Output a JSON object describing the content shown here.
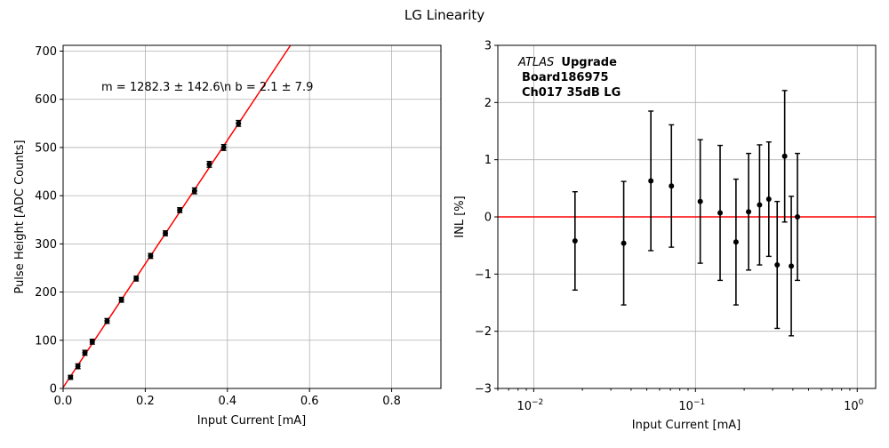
{
  "figure": {
    "title": "LG Linearity"
  },
  "chart_data": [
    {
      "type": "scatter",
      "title": "",
      "xlabel": "Input Current [mA]",
      "ylabel": "Pulse Height [ADC Counts]",
      "xlim": [
        0,
        0.92
      ],
      "ylim": [
        0,
        712
      ],
      "xticks": [
        0.0,
        0.2,
        0.4,
        0.6,
        0.8
      ],
      "xtick_labels": [
        "0.0",
        "0.2",
        "0.4",
        "0.6",
        "0.8"
      ],
      "yticks": [
        0,
        100,
        200,
        300,
        400,
        500,
        600,
        700
      ],
      "ytick_labels": [
        "0",
        "100",
        "200",
        "300",
        "400",
        "500",
        "600",
        "700"
      ],
      "grid": true,
      "annotation": "m = 1282.3 ± 142.6\\n b = 2.1 ± 7.9",
      "fit": {
        "slope": 1282.3,
        "intercept": 2.1,
        "color": "#ff0000"
      },
      "series": [
        {
          "name": "data",
          "x": [
            0.018,
            0.036,
            0.053,
            0.071,
            0.107,
            0.142,
            0.178,
            0.213,
            0.249,
            0.284,
            0.32,
            0.356,
            0.391,
            0.427
          ],
          "y": [
            23,
            46,
            74,
            97,
            140,
            184,
            228,
            275,
            322,
            370,
            410,
            465,
            500,
            550
          ],
          "yerr": [
            4,
            5,
            5,
            5,
            5,
            5,
            5,
            5,
            5,
            5,
            6,
            6,
            6,
            6
          ]
        }
      ]
    },
    {
      "type": "scatter",
      "title": "",
      "xlabel": "Input Current [mA]",
      "ylabel": "INL [%]",
      "xscale": "log",
      "xlim": [
        0.006,
        1.3
      ],
      "ylim": [
        -3,
        3
      ],
      "xticks": [
        0.01,
        0.1,
        1
      ],
      "xtick_labels": [
        "10",
        "10",
        "10"
      ],
      "xtick_exponents": [
        "−2",
        "−1",
        "0"
      ],
      "yticks": [
        -3,
        -2,
        -1,
        0,
        1,
        2,
        3
      ],
      "ytick_labels": [
        "−3",
        "−2",
        "−1",
        "0",
        "1",
        "2",
        "3"
      ],
      "grid": true,
      "reference_line": {
        "y": 0,
        "color": "#ff0000"
      },
      "legend_text": {
        "atlas": "ATLAS",
        "upgrade": "Upgrade",
        "board": "Board186975",
        "channel": "Ch017 35dB LG"
      },
      "series": [
        {
          "name": "INL",
          "x": [
            0.018,
            0.036,
            0.053,
            0.071,
            0.107,
            0.142,
            0.178,
            0.213,
            0.249,
            0.284,
            0.32,
            0.356,
            0.391,
            0.427
          ],
          "y": [
            -0.42,
            -0.46,
            0.63,
            0.54,
            0.27,
            0.07,
            -0.44,
            0.09,
            0.21,
            0.31,
            -0.84,
            1.06,
            -0.86,
            0.0
          ],
          "yerr": [
            0.86,
            1.08,
            1.22,
            1.07,
            1.08,
            1.18,
            1.1,
            1.02,
            1.05,
            1.0,
            1.11,
            1.15,
            1.22,
            1.11
          ]
        }
      ]
    }
  ]
}
